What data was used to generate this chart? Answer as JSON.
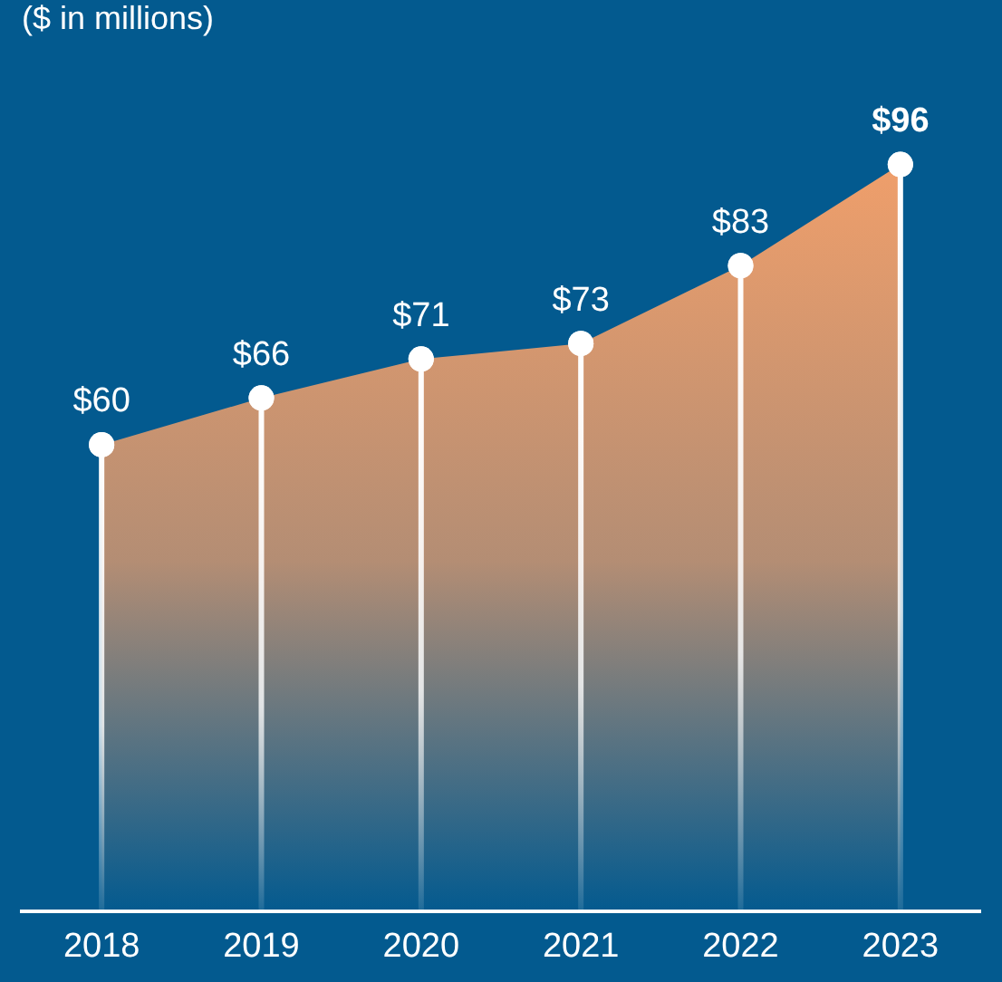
{
  "chart_data": {
    "type": "area",
    "subtitle": "($ in millions)",
    "categories": [
      "2018",
      "2019",
      "2020",
      "2021",
      "2022",
      "2023"
    ],
    "series": [
      {
        "color": "#f4a06a",
        "values": [
          60,
          66,
          71,
          73,
          83,
          96
        ],
        "value_labels": [
          "$60",
          "$66",
          "$71",
          "$73",
          "$83",
          "$96"
        ]
      }
    ],
    "marker": "circle",
    "grid": "x",
    "legend": false,
    "tick_labels": "x"
  }
}
